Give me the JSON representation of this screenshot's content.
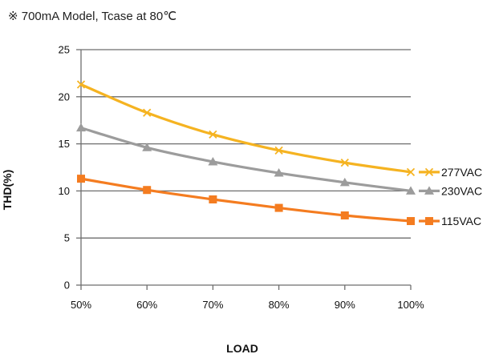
{
  "caption": "※ 700mA Model, Tcase at 80℃",
  "chart_data": {
    "type": "line",
    "title": "",
    "xlabel": "LOAD",
    "ylabel": "THD(%)",
    "categories": [
      "50%",
      "60%",
      "70%",
      "80%",
      "90%",
      "100%"
    ],
    "ylim": [
      0,
      25
    ],
    "yticks": [
      0,
      5,
      10,
      15,
      20,
      25
    ],
    "grid": true,
    "legend_position": "right",
    "series": [
      {
        "name": "277VAC",
        "values": [
          21.3,
          18.3,
          16.0,
          14.3,
          13.0,
          12.0
        ],
        "color": "#f5b321",
        "marker": "x"
      },
      {
        "name": "230VAC",
        "values": [
          16.7,
          14.6,
          13.1,
          11.9,
          10.9,
          10.0
        ],
        "color": "#9c9c9c",
        "marker": "triangle"
      },
      {
        "name": "115VAC",
        "values": [
          11.3,
          10.1,
          9.1,
          8.2,
          7.4,
          6.8
        ],
        "color": "#f47c20",
        "marker": "square"
      }
    ]
  }
}
